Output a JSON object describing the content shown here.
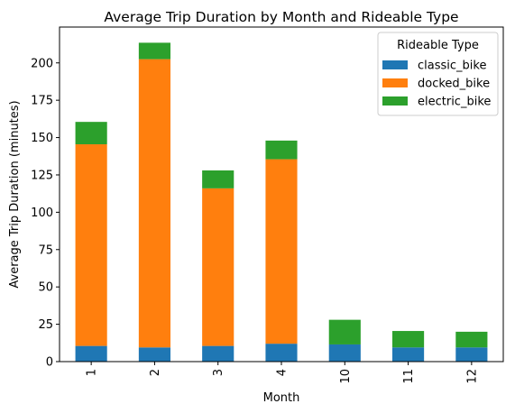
{
  "chart_data": {
    "type": "bar",
    "stacked": true,
    "title": "Average Trip Duration by Month and Rideable Type",
    "xlabel": "Month",
    "ylabel": "Average Trip Duration (minutes)",
    "categories": [
      "1",
      "2",
      "3",
      "4",
      "10",
      "11",
      "12"
    ],
    "ylim": [
      0,
      224
    ],
    "yticks": [
      0,
      25,
      50,
      75,
      100,
      125,
      150,
      175,
      200
    ],
    "legend_title": "Rideable Type",
    "legend_position": "top-right",
    "grid": false,
    "series": [
      {
        "name": "classic_bike",
        "color": "#1f77b4",
        "values": [
          10.5,
          9.5,
          10.5,
          12,
          11.5,
          9.5,
          9.5
        ]
      },
      {
        "name": "docked_bike",
        "color": "#ff7f0e",
        "values": [
          135,
          193,
          105.5,
          123.5,
          0,
          0,
          0
        ]
      },
      {
        "name": "electric_bike",
        "color": "#2ca02c",
        "values": [
          15,
          11,
          12,
          12.5,
          16.5,
          11,
          10.5
        ]
      }
    ]
  }
}
